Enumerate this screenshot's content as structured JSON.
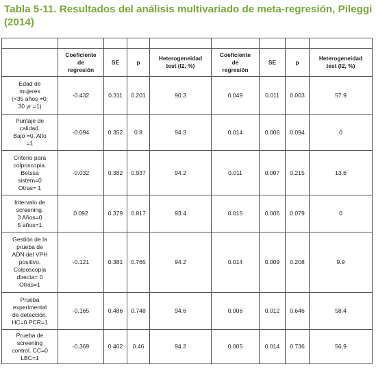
{
  "title_line1": "Tabla 5-11. Resultados del análisis multivariado de meta-regresión, Pileggi",
  "title_line2": "(2014)",
  "headers": {
    "coef": [
      "Coeficiente",
      "de",
      "regresión"
    ],
    "se": "SE",
    "p": "p",
    "het": [
      "Heterogeneidad",
      "test (I2, %)"
    ]
  },
  "rows": [
    {
      "label": [
        "Edad de",
        "mujeres",
        "(<35 años =0;",
        "30 yr =1)"
      ],
      "c1": "-0.432",
      "se1": "0.311",
      "p1": "0.201",
      "h1": "90.3",
      "c2": "0.049",
      "se2": "0.011",
      "p2": "0.003",
      "h2": "57.9"
    },
    {
      "label": [
        "Puntaje de",
        "calidad.",
        "Bajo =0. Alto",
        "=1"
      ],
      "c1": "-0.094",
      "se1": "0.352",
      "p1": "0.8",
      "h1": "94.3",
      "c2": "0.014",
      "se2": "0.006",
      "p2": "0.094",
      "h2": "0"
    },
    {
      "label": [
        "Criterio para",
        "colposcopia.",
        "Betssa",
        "sistem=0",
        "Otras= 1"
      ],
      "c1": "-0.032",
      "se1": "0.382",
      "p1": "0.937",
      "h1": "94.2",
      "c2": "0.011",
      "se2": "0.007",
      "p2": "0.215",
      "h2": "13.6"
    },
    {
      "label": [
        "Intervalo de",
        "screening.",
        "3 Años=0",
        "5 años=1"
      ],
      "c1": "0.092",
      "se1": "0.379",
      "p1": "0.817",
      "h1": "93.4",
      "c2": "0.015",
      "se2": "0.006",
      "p2": "0.079",
      "h2": "0"
    },
    {
      "label": [
        "Gestión de la",
        "prueba de",
        "ADN del VPH",
        "positivo.",
        "Colposcopia",
        "directa= 0",
        "Otras=1"
      ],
      "c1": "-0.121",
      "se1": "0.381",
      "p1": "0.765",
      "h1": "94.2",
      "c2": "0.014",
      "se2": "0.009",
      "p2": "0.208",
      "h2": "9.9"
    },
    {
      "label": [
        "Prueba",
        "experimental",
        "de detección.",
        "HC=0 PCR=1"
      ],
      "c1": "-0.165",
      "se1": "0.486",
      "p1": "0.748",
      "h1": "94.6",
      "c2": "0.006",
      "se2": "0.012",
      "p2": "0.646",
      "h2": "58.4"
    },
    {
      "label": [
        "Prueba de",
        "screening",
        "control. CC=0",
        "LBC=1"
      ],
      "c1": "-0.369",
      "se1": "0.462",
      "p1": "0.46",
      "h1": "94.2",
      "c2": "0.005",
      "se2": "0.014",
      "p2": "0.736",
      "h2": "56.9"
    }
  ]
}
